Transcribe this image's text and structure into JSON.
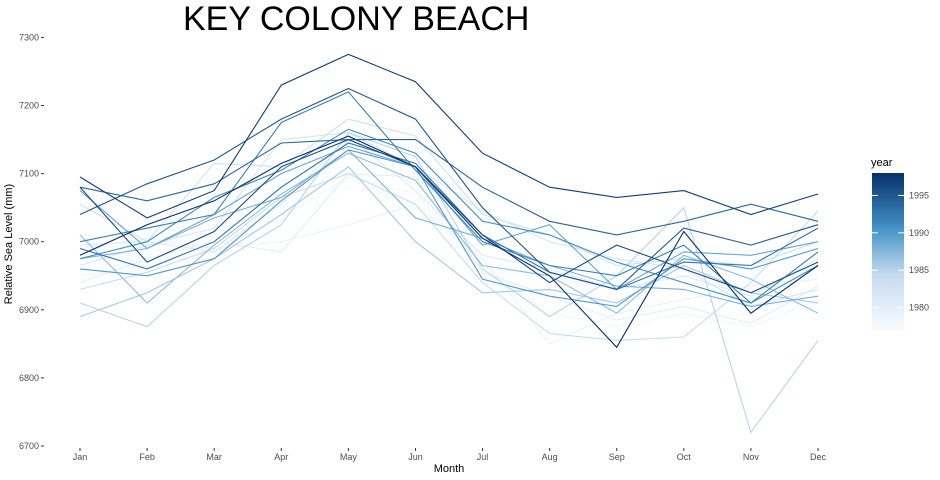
{
  "chart_data": {
    "type": "line",
    "title": "KEY COLONY BEACH",
    "xlabel": "Month",
    "ylabel": "Relative Sea Level (mm)",
    "categories": [
      "Jan",
      "Feb",
      "Mar",
      "Apr",
      "May",
      "Jun",
      "Jul",
      "Aug",
      "Sep",
      "Oct",
      "Nov",
      "Dec"
    ],
    "yticks": [
      6700,
      6800,
      6900,
      7000,
      7100,
      7200,
      7300
    ],
    "ylim": [
      6700,
      7305
    ],
    "grid": false,
    "legend": {
      "title": "year",
      "position": "right",
      "type": "colorbar",
      "range": [
        1977,
        1998
      ],
      "ticks": [
        1980,
        1985,
        1990,
        1995
      ],
      "color_low": "#f7fbff",
      "color_high": "#08306b"
    },
    "series": [
      {
        "year": 1977,
        "values": [
          6960,
          6955,
          6975,
          7020,
          7080,
          7065,
          6960,
          6945,
          6930,
          6940,
          6930,
          6945
        ]
      },
      {
        "year": 1978,
        "values": [
          6950,
          6965,
          6985,
          7035,
          7095,
          7070,
          6965,
          6895,
          6875,
          6895,
          6875,
          6915
        ]
      },
      {
        "year": 1979,
        "values": [
          6990,
          7005,
          6990,
          7000,
          7025,
          7055,
          6975,
          6850,
          6895,
          6915,
          6935,
          6945
        ]
      },
      {
        "year": 1980,
        "values": [
          6940,
          6975,
          7000,
          6985,
          7100,
          7095,
          6955,
          6920,
          6885,
          6905,
          6880,
          6935
        ]
      },
      {
        "year": 1981,
        "values": [
          6995,
          7000,
          6985,
          7055,
          7155,
          7075,
          6980,
          6960,
          6930,
          6950,
          6920,
          6975
        ]
      },
      {
        "year": 1982,
        "values": [
          6965,
          6995,
          7020,
          7150,
          7160,
          7110,
          7045,
          7000,
          6975,
          6960,
          6905,
          6930
        ]
      },
      {
        "year": 1983,
        "values": [
          7055,
          7000,
          7115,
          7110,
          7180,
          7155,
          7040,
          7010,
          6965,
          6975,
          6965,
          7000
        ]
      },
      {
        "year": 1984,
        "values": [
          6930,
          6955,
          6990,
          7065,
          7100,
          7055,
          6940,
          6865,
          6855,
          6860,
          6940,
          7045
        ]
      },
      {
        "year": 1985,
        "values": [
          6910,
          6875,
          6965,
          7025,
          7160,
          7125,
          6960,
          6890,
          6950,
          7050,
          6720,
          6855
        ]
      },
      {
        "year": 1986,
        "values": [
          6890,
          6925,
          6975,
          7040,
          7110,
          7000,
          6925,
          6930,
          6910,
          6965,
          6925,
          6910
        ]
      },
      {
        "year": 1987,
        "values": [
          7010,
          6910,
          6995,
          7070,
          7130,
          7090,
          6965,
          6950,
          6895,
          6980,
          6945,
          6895
        ]
      },
      {
        "year": 1988,
        "values": [
          6975,
          6990,
          7035,
          7065,
          7135,
          7035,
          7005,
          6965,
          6935,
          6930,
          6905,
          6920
        ]
      },
      {
        "year": 1989,
        "values": [
          7075,
          6990,
          7040,
          7100,
          7140,
          7110,
          6995,
          7025,
          6930,
          6985,
          6980,
          7000
        ]
      },
      {
        "year": 1990,
        "values": [
          6960,
          6950,
          6975,
          7060,
          7135,
          7110,
          6945,
          6920,
          6905,
          6975,
          6960,
          6990
        ]
      },
      {
        "year": 1991,
        "values": [
          6975,
          7000,
          7065,
          7105,
          7165,
          7130,
          7030,
          7010,
          6970,
          6940,
          6910,
          6965
        ]
      },
      {
        "year": 1992,
        "values": [
          7000,
          7020,
          7040,
          7175,
          7220,
          7105,
          7000,
          6965,
          6950,
          6995,
          6910,
          6985
        ]
      },
      {
        "year": 1993,
        "values": [
          6990,
          6960,
          7000,
          7080,
          7145,
          7115,
          7010,
          6955,
          6930,
          6970,
          6965,
          7020
        ]
      },
      {
        "year": 1994,
        "values": [
          7080,
          7060,
          7085,
          7145,
          7150,
          7150,
          7080,
          7030,
          7010,
          7030,
          7055,
          7030
        ]
      },
      {
        "year": 1995,
        "values": [
          7040,
          7085,
          7120,
          7180,
          7225,
          7180,
          7050,
          6955,
          6930,
          7020,
          6995,
          7025
        ]
      },
      {
        "year": 1996,
        "values": [
          7080,
          6970,
          7015,
          7110,
          7150,
          7110,
          7010,
          6940,
          6995,
          6960,
          6925,
          6970
        ]
      },
      {
        "year": 1997,
        "values": [
          7095,
          7035,
          7075,
          7230,
          7275,
          7235,
          7130,
          7080,
          7065,
          7075,
          7040,
          7070
        ]
      },
      {
        "year": 1998,
        "values": [
          6980,
          7025,
          7060,
          7115,
          7155,
          7110,
          7005,
          6950,
          6845,
          7015,
          6895,
          6965
        ]
      }
    ]
  }
}
